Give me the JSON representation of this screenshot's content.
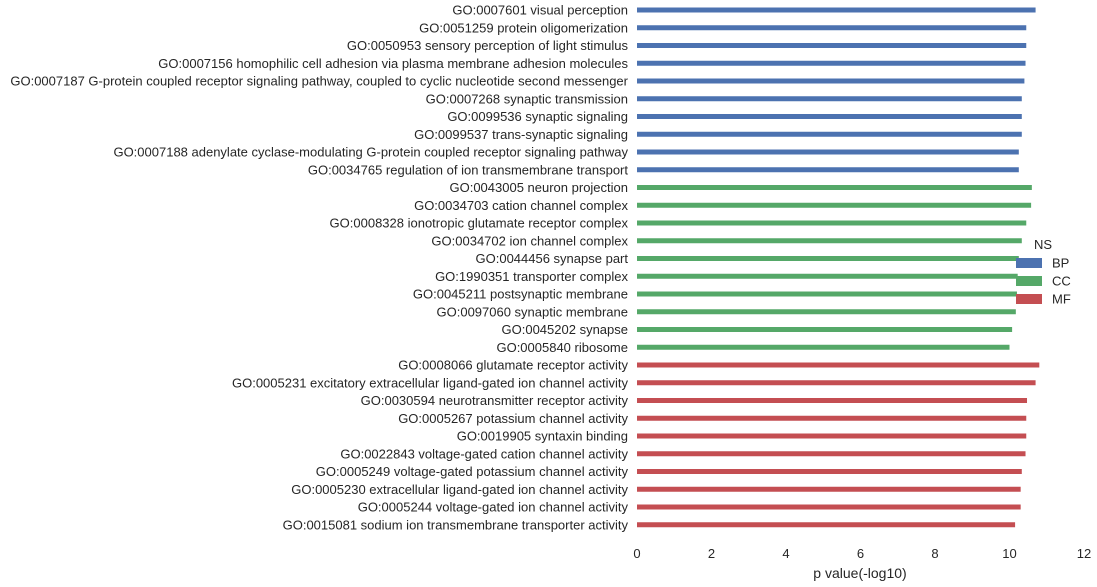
{
  "chart_data": {
    "type": "bar",
    "orientation": "horizontal",
    "xlabel": "p value(-log10)",
    "ylabel": "",
    "xlim": [
      0,
      12
    ],
    "xticks": [
      "0",
      "2",
      "4",
      "6",
      "8",
      "10",
      "12"
    ],
    "grid": false,
    "legend": {
      "title": "NS",
      "placement": "right",
      "entries": [
        {
          "name": "BP",
          "color": "#4c72b0"
        },
        {
          "name": "CC",
          "color": "#55a868"
        },
        {
          "name": "MF",
          "color": "#c44e52"
        }
      ]
    },
    "series": [
      {
        "name": "BP",
        "color": "#4c72b0",
        "categories": [
          "GO:0007601 visual perception",
          "GO:0051259 protein oligomerization",
          "GO:0050953 sensory perception of light stimulus",
          "GO:0007156 homophilic cell adhesion via plasma membrane adhesion molecules",
          "GO:0007187 G-protein coupled receptor signaling pathway, coupled to cyclic nucleotide second messenger",
          "GO:0007268 synaptic transmission",
          "GO:0099536 synaptic signaling",
          "GO:0099537 trans-synaptic signaling",
          "GO:0007188 adenylate cyclase-modulating G-protein coupled receptor signaling pathway",
          "GO:0034765 regulation of ion transmembrane transport"
        ],
        "values": [
          10.7,
          10.45,
          10.45,
          10.43,
          10.4,
          10.33,
          10.33,
          10.33,
          10.25,
          10.25
        ]
      },
      {
        "name": "CC",
        "color": "#55a868",
        "categories": [
          "GO:0043005 neuron projection",
          "GO:0034703 cation channel complex",
          "GO:0008328 ionotropic glutamate receptor complex",
          "GO:0034702 ion channel complex",
          "GO:0044456 synapse part",
          "GO:1990351 transporter complex",
          "GO:0045211 postsynaptic membrane",
          "GO:0097060 synaptic membrane",
          "GO:0045202 synapse",
          "GO:0005840 ribosome"
        ],
        "values": [
          10.6,
          10.58,
          10.45,
          10.33,
          10.25,
          10.22,
          10.2,
          10.17,
          10.07,
          10.0
        ]
      },
      {
        "name": "MF",
        "color": "#c44e52",
        "categories": [
          "GO:0008066 glutamate receptor activity",
          "GO:0005231 excitatory extracellular ligand-gated ion channel activity",
          "GO:0030594 neurotransmitter receptor activity",
          "GO:0005267 potassium channel activity",
          "GO:0019905 syntaxin binding",
          "GO:0022843 voltage-gated cation channel activity",
          "GO:0005249 voltage-gated potassium channel activity",
          "GO:0005230 extracellular ligand-gated ion channel activity",
          "GO:0005244 voltage-gated ion channel activity",
          "GO:0015081 sodium ion transmembrane transporter activity"
        ],
        "values": [
          10.8,
          10.7,
          10.47,
          10.45,
          10.45,
          10.43,
          10.33,
          10.3,
          10.3,
          10.15
        ]
      }
    ]
  }
}
